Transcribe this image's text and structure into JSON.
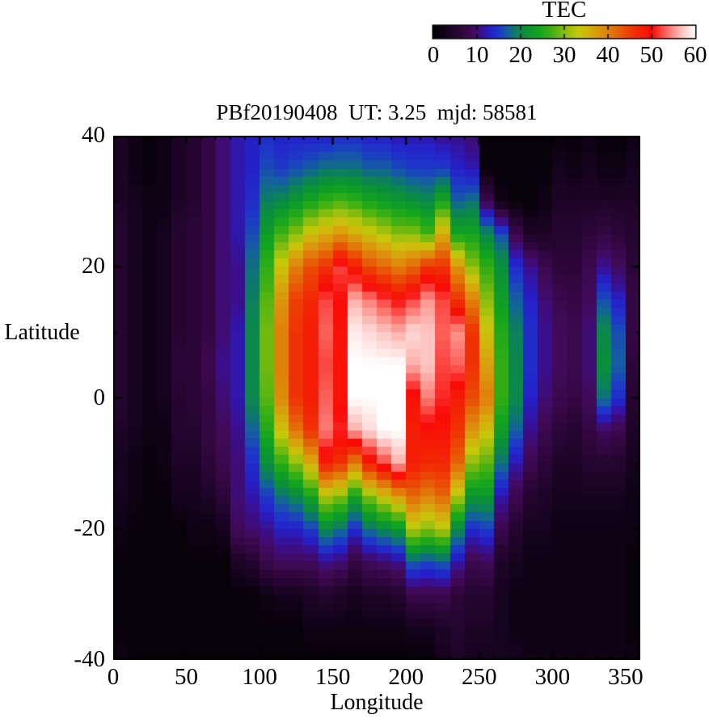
{
  "figure": {
    "title": "PBf20190408  UT: 3.25  mjd: 58581",
    "background": "#ffffff",
    "frame_color": "#000000"
  },
  "colorbar": {
    "title": "TEC",
    "tick_labels": [
      "0",
      "10",
      "20",
      "30",
      "40",
      "50",
      "60"
    ],
    "tick_values": [
      0,
      10,
      20,
      30,
      40,
      50,
      60
    ],
    "notch_values": [
      10,
      20,
      30,
      40,
      50
    ],
    "min": 0,
    "max": 60
  },
  "axes": {
    "xlabel": "Longitude",
    "ylabel": "Latitude",
    "x_tick_values": [
      0,
      50,
      100,
      150,
      200,
      250,
      300,
      350
    ],
    "x_tick_labels": [
      "0",
      "50",
      "100",
      "150",
      "200",
      "250",
      "300",
      "350"
    ],
    "y_tick_values": [
      40,
      20,
      0,
      -20,
      -40
    ],
    "y_tick_labels": [
      "40",
      "20",
      "0",
      "-20",
      "-40"
    ],
    "xlim": [
      0,
      360
    ],
    "ylim": [
      -40,
      40
    ],
    "x_minor_step": 10,
    "y_minor_step": 10,
    "x_major_step": 50,
    "y_major_step": 20
  },
  "chart_data": {
    "type": "heatmap",
    "title": "PBf20190408  UT: 3.25  mjd: 58581",
    "xlabel": "Longitude",
    "ylabel": "Latitude",
    "colorbar_label": "TEC",
    "value_range": [
      0,
      60
    ],
    "lon_start": 0,
    "lon_step": 10,
    "lat_rows": [
      40,
      35,
      30,
      25,
      20,
      15,
      10,
      5,
      0,
      -5,
      -10,
      -15,
      -20,
      -25,
      -30,
      -35,
      -40
    ],
    "columns": [
      [
        4,
        4,
        4,
        5,
        5,
        5,
        5,
        5,
        5,
        4,
        3,
        3,
        2,
        1,
        1,
        1,
        2
      ],
      [
        2,
        2,
        3,
        3,
        3,
        3,
        3,
        3,
        3,
        3,
        2,
        2,
        1,
        1,
        1,
        1,
        1
      ],
      [
        1,
        1,
        2,
        2,
        2,
        2,
        2,
        2,
        2,
        2,
        1,
        1,
        1,
        1,
        1,
        1,
        1
      ],
      [
        2,
        2,
        2,
        3,
        3,
        3,
        3,
        3,
        3,
        2,
        2,
        1,
        1,
        1,
        1,
        1,
        1
      ],
      [
        4,
        4,
        4,
        5,
        5,
        5,
        5,
        6,
        5,
        5,
        4,
        3,
        1,
        1,
        1,
        1,
        1
      ],
      [
        5,
        5,
        5,
        6,
        6,
        6,
        6,
        6,
        6,
        5,
        4,
        3,
        2,
        1,
        1,
        1,
        1
      ],
      [
        7,
        7,
        7,
        7,
        7,
        7,
        7,
        8,
        7,
        7,
        6,
        4,
        2,
        1,
        1,
        1,
        1
      ],
      [
        10,
        10,
        10,
        10,
        10,
        10,
        10,
        11,
        10,
        9,
        8,
        6,
        3,
        1,
        1,
        1,
        1
      ],
      [
        12,
        12,
        12,
        12,
        11,
        11,
        12,
        12,
        12,
        11,
        10,
        10,
        9,
        4,
        1,
        1,
        1
      ],
      [
        13,
        13,
        14,
        16,
        18,
        19,
        20,
        20,
        20,
        17,
        14,
        12,
        10,
        5,
        1,
        1,
        1
      ],
      [
        14,
        16,
        19,
        23,
        26,
        28,
        29,
        29,
        28,
        25,
        21,
        15,
        11,
        8,
        2,
        1,
        1
      ],
      [
        13,
        15,
        20,
        27,
        34,
        38,
        40,
        40,
        39,
        34,
        26,
        18,
        13,
        9,
        3,
        1,
        1
      ],
      [
        13,
        16,
        22,
        30,
        40,
        45,
        46,
        46,
        46,
        41,
        30,
        20,
        13,
        9,
        3,
        1,
        1
      ],
      [
        13,
        17,
        24,
        34,
        44,
        47,
        48,
        48,
        48,
        46,
        36,
        24,
        15,
        9,
        4,
        2,
        1
      ],
      [
        13,
        18,
        26,
        36,
        46,
        52,
        53,
        52,
        53,
        54,
        48,
        32,
        20,
        11,
        5,
        2,
        1
      ],
      [
        14,
        18,
        27,
        38,
        52,
        50,
        49,
        49,
        49,
        51,
        46,
        30,
        18,
        10,
        4,
        2,
        1
      ],
      [
        14,
        18,
        26,
        36,
        48,
        56,
        59,
        60,
        60,
        56,
        40,
        24,
        14,
        7,
        3,
        2,
        1
      ],
      [
        13,
        17,
        24,
        34,
        44,
        54,
        58,
        60,
        60,
        58,
        48,
        30,
        18,
        9,
        4,
        2,
        1
      ],
      [
        13,
        17,
        23,
        32,
        42,
        52,
        57,
        60,
        60,
        60,
        52,
        34,
        20,
        10,
        4,
        2,
        1
      ],
      [
        12,
        16,
        22,
        30,
        40,
        50,
        56,
        60,
        60,
        60,
        56,
        38,
        22,
        11,
        5,
        2,
        1
      ],
      [
        12,
        15,
        21,
        30,
        42,
        52,
        58,
        56,
        49,
        48,
        48,
        42,
        32,
        17,
        8,
        3,
        1
      ],
      [
        12,
        15,
        20,
        27,
        46,
        55,
        57,
        57,
        54,
        49,
        47,
        40,
        30,
        16,
        8,
        3,
        1
      ],
      [
        11,
        15,
        24,
        36,
        46,
        52,
        53,
        52,
        51,
        49,
        47,
        42,
        32,
        17,
        8,
        4,
        3
      ],
      [
        11,
        13,
        17,
        24,
        38,
        46,
        55,
        53,
        48,
        46,
        42,
        32,
        20,
        12,
        6,
        5,
        4
      ],
      [
        10,
        12,
        18,
        24,
        30,
        40,
        46,
        46,
        44,
        38,
        30,
        22,
        14,
        8,
        5,
        4,
        3
      ],
      [
        1,
        1,
        8,
        20,
        26,
        30,
        34,
        37,
        40,
        34,
        28,
        22,
        15,
        9,
        5,
        4,
        3
      ],
      [
        1,
        1,
        2,
        16,
        21,
        23,
        25,
        26,
        26,
        23,
        18,
        12,
        8,
        4,
        3,
        3,
        3
      ],
      [
        1,
        1,
        1,
        8,
        14,
        17,
        19,
        20,
        20,
        17,
        12,
        8,
        5,
        3,
        2,
        2,
        3
      ],
      [
        1,
        1,
        1,
        4,
        11,
        13,
        14,
        14,
        13,
        11,
        8,
        5,
        3,
        2,
        2,
        2,
        2
      ],
      [
        1,
        1,
        2,
        4,
        8,
        10,
        11,
        11,
        10,
        8,
        6,
        4,
        3,
        2,
        2,
        2,
        2
      ],
      [
        1,
        3,
        4,
        5,
        6,
        8,
        9,
        9,
        8,
        6,
        4,
        3,
        2,
        2,
        2,
        2,
        2
      ],
      [
        1,
        2,
        4,
        5,
        6,
        7,
        8,
        8,
        7,
        5,
        4,
        3,
        2,
        2,
        2,
        2,
        2
      ],
      [
        2,
        3,
        4,
        6,
        8,
        9,
        10,
        10,
        9,
        7,
        5,
        3,
        2,
        2,
        2,
        2,
        2
      ],
      [
        1,
        2,
        4,
        7,
        11,
        16,
        20,
        21,
        18,
        9,
        5,
        3,
        2,
        2,
        2,
        2,
        2
      ],
      [
        1,
        2,
        4,
        6,
        9,
        13,
        16,
        17,
        14,
        8,
        5,
        3,
        2,
        2,
        2,
        2,
        2
      ],
      [
        2,
        3,
        4,
        5,
        6,
        7,
        7,
        6,
        5,
        4,
        3,
        2,
        2,
        1,
        1,
        1,
        2
      ]
    ],
    "colormap_stops": [
      [
        0,
        "#000000"
      ],
      [
        3,
        "#16031f"
      ],
      [
        6,
        "#2c0638"
      ],
      [
        9,
        "#420a5a"
      ],
      [
        11,
        "#3a0f8e"
      ],
      [
        13,
        "#2420c8"
      ],
      [
        15,
        "#1e38c8"
      ],
      [
        17,
        "#13609e"
      ],
      [
        19,
        "#0c805c"
      ],
      [
        21,
        "#0a9038"
      ],
      [
        24,
        "#12a41e"
      ],
      [
        27,
        "#40b012"
      ],
      [
        30,
        "#8abc0e"
      ],
      [
        33,
        "#c4c80a"
      ],
      [
        35,
        "#d0b60c"
      ],
      [
        38,
        "#dc940e"
      ],
      [
        41,
        "#e27408"
      ],
      [
        44,
        "#ea4a06"
      ],
      [
        47,
        "#f22604"
      ],
      [
        50,
        "#f90a06"
      ],
      [
        52,
        "#fa4540"
      ],
      [
        55,
        "#fc968f"
      ],
      [
        57,
        "#fdc6c2"
      ],
      [
        59,
        "#ffeceb"
      ],
      [
        60,
        "#ffffff"
      ]
    ]
  }
}
